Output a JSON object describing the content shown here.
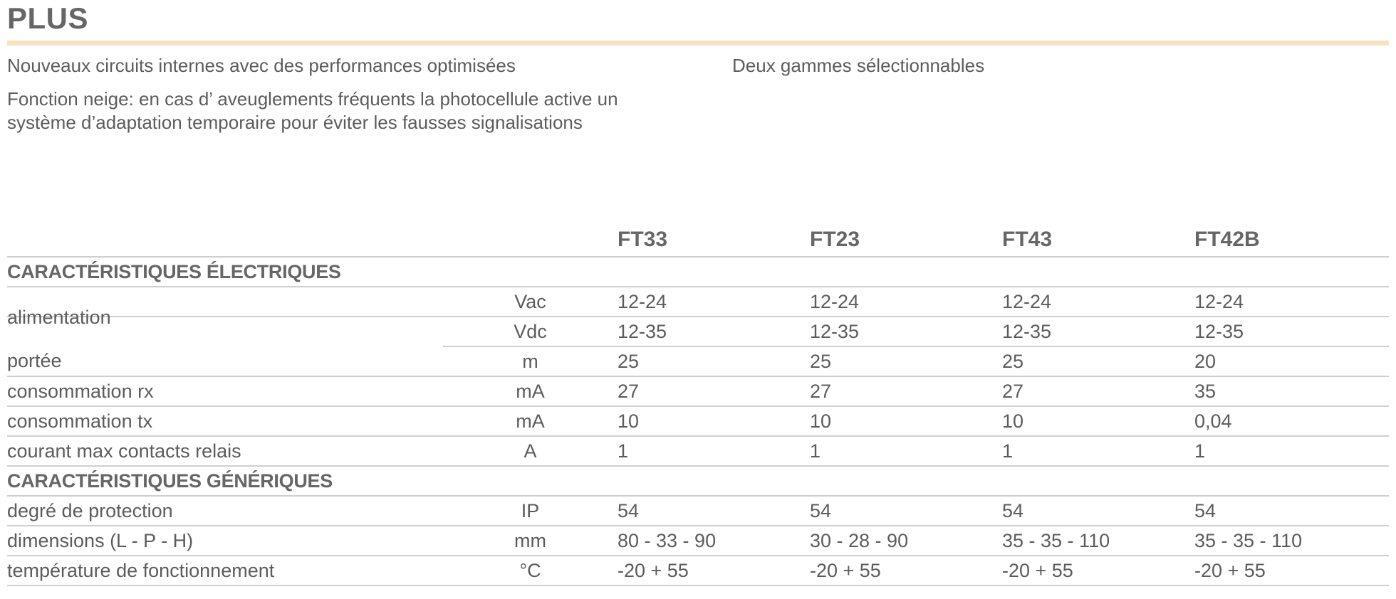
{
  "header": {
    "title": "PLUS"
  },
  "features": {
    "left": [
      "Nouveaux circuits internes avec des performances optimisées",
      "Fonction neige: en cas d’ aveuglements fréquents la photocellule active un système d’adaptation temporaire pour éviter les fausses signalisations"
    ],
    "right": [
      "Deux gammes sélectionnables"
    ]
  },
  "table": {
    "models": [
      "FT33",
      "FT23",
      "FT43",
      "FT42B"
    ],
    "sections": [
      {
        "title": "CARACTÉRISTIQUES ÉLECTRIQUES",
        "alimentation": {
          "label": "alimentation",
          "rows": [
            {
              "unit": "Vac",
              "values": [
                "12-24",
                "12-24",
                "12-24",
                "12-24"
              ]
            },
            {
              "unit": "Vdc",
              "values": [
                "12-35",
                "12-35",
                "12-35",
                "12-35"
              ]
            }
          ]
        },
        "rows": [
          {
            "label": "portée",
            "unit": "m",
            "values": [
              "25",
              "25",
              "25",
              "20"
            ]
          },
          {
            "label": "consommation rx",
            "unit": "mA",
            "values": [
              "27",
              "27",
              "27",
              "35"
            ]
          },
          {
            "label": "consommation tx",
            "unit": "mA",
            "values": [
              "10",
              "10",
              "10",
              "0,04"
            ]
          },
          {
            "label": "courant max contacts relais",
            "unit": "A",
            "values": [
              "1",
              "1",
              "1",
              "1"
            ]
          }
        ]
      },
      {
        "title": "CARACTÉRISTIQUES GÉNÉRIQUES",
        "rows": [
          {
            "label": "degré de protection",
            "unit": "IP",
            "values": [
              "54",
              "54",
              "54",
              "54"
            ]
          },
          {
            "label": "dimensions (L - P - H)",
            "unit": "mm",
            "values": [
              "80 - 33 - 90",
              "30 - 28 - 90",
              "35 - 35 - 110",
              "35 - 35 - 110"
            ]
          },
          {
            "label": "température de fonctionnement",
            "unit": "°C",
            "values": [
              "-20 + 55",
              "-20 + 55",
              "-20 + 55",
              "-20 + 55"
            ]
          }
        ]
      }
    ]
  },
  "colors": {
    "accent_rule": "#f7e3c2",
    "text": "#5c5c5c",
    "rule": "#cfcfcf"
  }
}
